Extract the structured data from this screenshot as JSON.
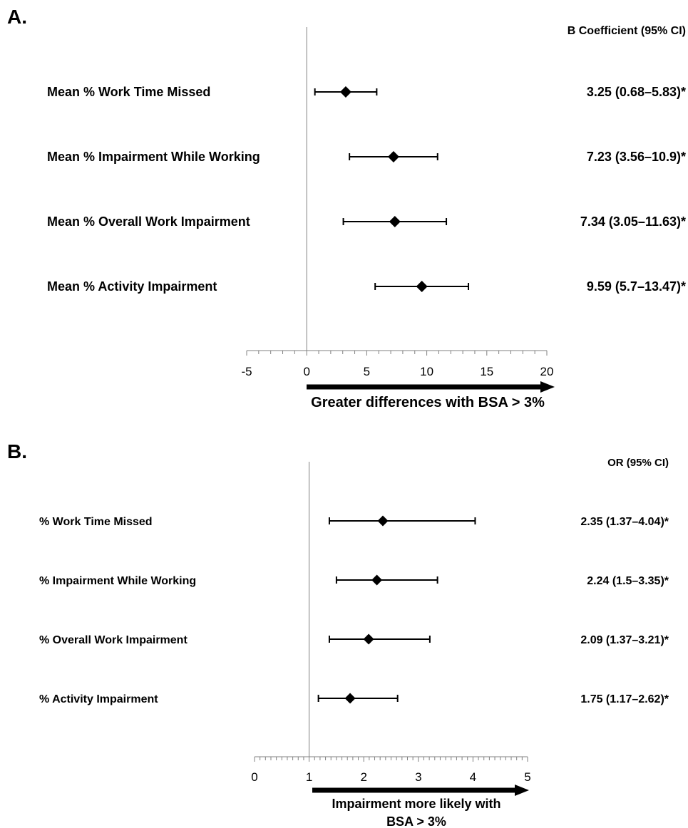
{
  "chart_data": [
    {
      "type": "forest",
      "panel_label": "A.",
      "column_header": "B Coefficient (95% CI)",
      "xlim": [
        -5,
        20
      ],
      "ticks": [
        -5,
        0,
        5,
        10,
        15,
        20
      ],
      "reference_line": 0,
      "arrow_label": [
        "Greater differences with BSA > 3%"
      ],
      "rows": [
        {
          "label": "Mean % Work Time Missed",
          "estimate": 3.25,
          "lower": 0.68,
          "upper": 5.83,
          "ci_text": "3.25 (0.68–5.83)*"
        },
        {
          "label": "Mean % Impairment While Working",
          "estimate": 7.23,
          "lower": 3.56,
          "upper": 10.9,
          "ci_text": "7.23 (3.56–10.9)*"
        },
        {
          "label": "Mean % Overall Work Impairment",
          "estimate": 7.34,
          "lower": 3.05,
          "upper": 11.63,
          "ci_text": "7.34 (3.05–11.63)*"
        },
        {
          "label": "Mean % Activity Impairment",
          "estimate": 9.59,
          "lower": 5.7,
          "upper": 13.47,
          "ci_text": "9.59 (5.7–13.47)*"
        }
      ]
    },
    {
      "type": "forest",
      "panel_label": "B.",
      "column_header": "OR (95% CI)",
      "xlim": [
        0,
        5
      ],
      "ticks": [
        0,
        1,
        2,
        3,
        4,
        5
      ],
      "reference_line": 1,
      "arrow_label": [
        "Impairment more likely with",
        "BSA > 3%"
      ],
      "rows": [
        {
          "label": "% Work Time Missed",
          "estimate": 2.35,
          "lower": 1.37,
          "upper": 4.04,
          "ci_text": "2.35 (1.37–4.04)*"
        },
        {
          "label": "% Impairment While Working",
          "estimate": 2.24,
          "lower": 1.5,
          "upper": 3.35,
          "ci_text": "2.24 (1.5–3.35)*"
        },
        {
          "label": "% Overall Work Impairment",
          "estimate": 2.09,
          "lower": 1.37,
          "upper": 3.21,
          "ci_text": "2.09 (1.37–3.21)*"
        },
        {
          "label": "% Activity Impairment",
          "estimate": 1.75,
          "lower": 1.17,
          "upper": 2.62,
          "ci_text": "1.75 (1.17–2.62)*"
        }
      ]
    }
  ]
}
